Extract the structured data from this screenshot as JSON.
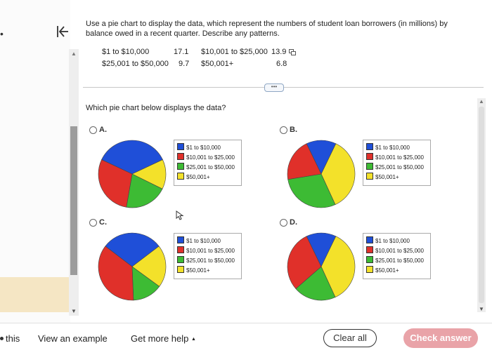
{
  "question": {
    "text": "Use a pie chart to display the data, which represent the numbers of student loan borrowers (in millions) by balance owed in a recent quarter. Describe any patterns."
  },
  "table": [
    {
      "label": "$1 to $10,000",
      "value": "17.1"
    },
    {
      "label": "$10,001 to $25,000",
      "value": "13.9"
    },
    {
      "label": "$25,001 to $50,000",
      "value": "9.7"
    },
    {
      "label": "$50,001+",
      "value": "6.8"
    }
  ],
  "prompt": "Which pie chart below displays the data?",
  "colors": {
    "blue": "#1f4fd8",
    "red": "#e0302a",
    "green": "#3dbb34",
    "yellow": "#f3e12a"
  },
  "legend_labels": [
    "$1 to $10,000",
    "$10,001 to $25,000",
    "$25,001 to $50,000",
    "$50,001+"
  ],
  "options": [
    {
      "label": "A.",
      "slices": [
        {
          "name": "$1 to $10,000",
          "value": 17.1
        },
        {
          "name": "$50,001+",
          "value": 6.8
        },
        {
          "name": "$25,001 to $50,000",
          "value": 9.7
        },
        {
          "name": "$10,001 to $25,000",
          "value": 13.9
        }
      ]
    },
    {
      "label": "B.",
      "slices": [
        {
          "name": "$1 to $10,000",
          "value": 6.8
        },
        {
          "name": "$50,001+",
          "value": 17.1
        },
        {
          "name": "$25,001 to $50,000",
          "value": 13.9
        },
        {
          "name": "$10,001 to $25,000",
          "value": 9.7
        }
      ]
    },
    {
      "label": "C.",
      "slices": [
        {
          "name": "$1 to $10,000",
          "value": 13.9
        },
        {
          "name": "$50,001+",
          "value": 9.7
        },
        {
          "name": "$25,001 to $50,000",
          "value": 6.8
        },
        {
          "name": "$10,001 to $25,000",
          "value": 17.1
        }
      ]
    },
    {
      "label": "D.",
      "slices": [
        {
          "name": "$1 to $10,000",
          "value": 6.8
        },
        {
          "name": "$50,001+",
          "value": 17.1
        },
        {
          "name": "$25,001 to $50,000",
          "value": 9.7
        },
        {
          "name": "$10,001 to $25,000",
          "value": 13.9
        }
      ]
    }
  ],
  "footer": {
    "this_text": "this",
    "example": "View an example",
    "help": "Get more help",
    "help_arrow": "▲",
    "clear": "Clear all",
    "check": "Check answer"
  },
  "icons": {
    "collapse": "collapse-left-icon",
    "copy": "copy-icon",
    "more": "ellipsis-icon",
    "cursor": "cursor-icon"
  },
  "more_btn": "•••",
  "chart_data": [
    {
      "type": "pie",
      "label": "A.",
      "categories": [
        "$1 to $10,000",
        "$50,001+",
        "$25,001 to $50,000",
        "$10,001 to $25,000"
      ],
      "values": [
        17.1,
        6.8,
        9.7,
        13.9
      ]
    },
    {
      "type": "pie",
      "label": "B.",
      "categories": [
        "$1 to $10,000",
        "$50,001+",
        "$25,001 to $50,000",
        "$10,001 to $25,000"
      ],
      "values": [
        6.8,
        17.1,
        13.9,
        9.7
      ]
    },
    {
      "type": "pie",
      "label": "C.",
      "categories": [
        "$1 to $10,000",
        "$50,001+",
        "$25,001 to $50,000",
        "$10,001 to $25,000"
      ],
      "values": [
        13.9,
        9.7,
        6.8,
        17.1
      ]
    },
    {
      "type": "pie",
      "label": "D.",
      "categories": [
        "$1 to $10,000",
        "$50,001+",
        "$25,001 to $50,000",
        "$10,001 to $25,000"
      ],
      "values": [
        6.8,
        17.1,
        9.7,
        13.9
      ]
    }
  ]
}
